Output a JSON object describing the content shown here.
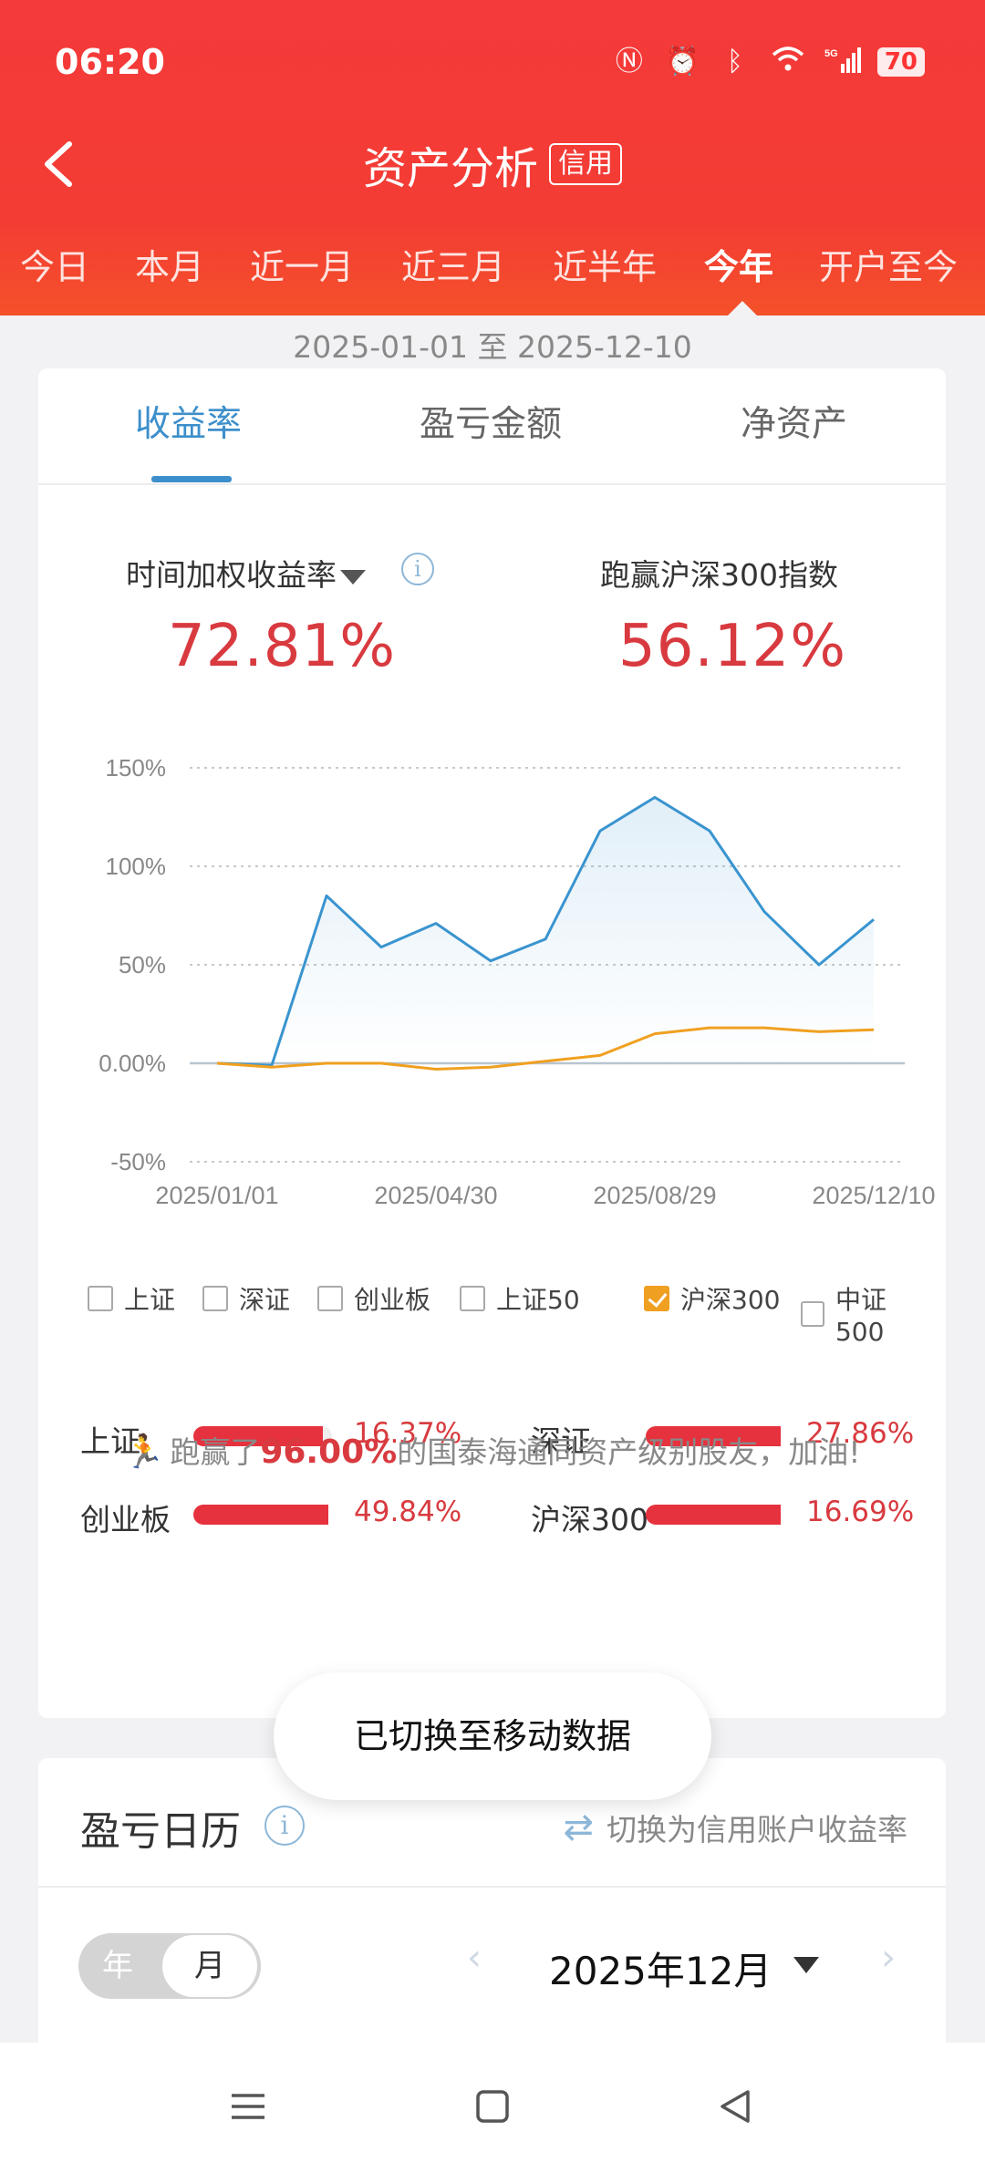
{
  "status": {
    "time": "06:20",
    "battery": "70"
  },
  "header": {
    "title": "资产分析",
    "tag": "信用"
  },
  "period_tabs": [
    "今日",
    "本月",
    "近一月",
    "近三月",
    "近半年",
    "今年",
    "开户至今"
  ],
  "date_range": "2025-01-01 至 2025-12-10",
  "metric_tabs": [
    "收益率",
    "盈亏金额",
    "净资产"
  ],
  "stats": {
    "left_label": "时间加权收益率",
    "left_value": "72.81%",
    "right_label": "跑赢沪深300指数",
    "right_value": "56.12%"
  },
  "chart_data": {
    "type": "line",
    "y_ticks": [
      "150%",
      "100%",
      "50%",
      "0.00%",
      "-50%"
    ],
    "ylim": [
      -50,
      150
    ],
    "x_ticks": [
      "2025/01/01",
      "2025/04/30",
      "2025/08/29",
      "2025/12/10"
    ],
    "series": [
      {
        "name": "收益率",
        "color": "#3a94cf",
        "values": [
          0,
          -1,
          85,
          59,
          71,
          52,
          63,
          118,
          135,
          118,
          77,
          50,
          73
        ]
      },
      {
        "name": "沪深300",
        "color": "#f0a020",
        "values": [
          0,
          -2,
          0,
          0,
          -3,
          -2,
          1,
          4,
          15,
          18,
          18,
          16,
          17
        ]
      }
    ]
  },
  "legend": [
    {
      "label": "上证",
      "checked": false
    },
    {
      "label": "深证",
      "checked": false
    },
    {
      "label": "创业板",
      "checked": false
    },
    {
      "label": "上证50",
      "checked": false
    },
    {
      "label": "沪深300",
      "checked": true
    },
    {
      "label": "中证500",
      "checked": false
    }
  ],
  "benchmarks": [
    {
      "name": "上证",
      "value": "16.37%",
      "fill": 0.96
    },
    {
      "name": "深证",
      "value": "27.86%",
      "fill": 1.0
    },
    {
      "name": "创业板",
      "value": "49.84%",
      "fill": 1.0
    },
    {
      "name": "沪深300",
      "value": "16.69%",
      "fill": 1.0
    }
  ],
  "beat": {
    "prefix": "跑赢了",
    "percent": "96.00%",
    "suffix": "的国泰海通同资产级别股友，加油!"
  },
  "toast": "已切换至移动数据",
  "calendar": {
    "title": "盈亏日历",
    "switch_label": "切换为信用账户收益率",
    "toggle_year": "年",
    "toggle_month": "月",
    "month": "2025年12月"
  }
}
